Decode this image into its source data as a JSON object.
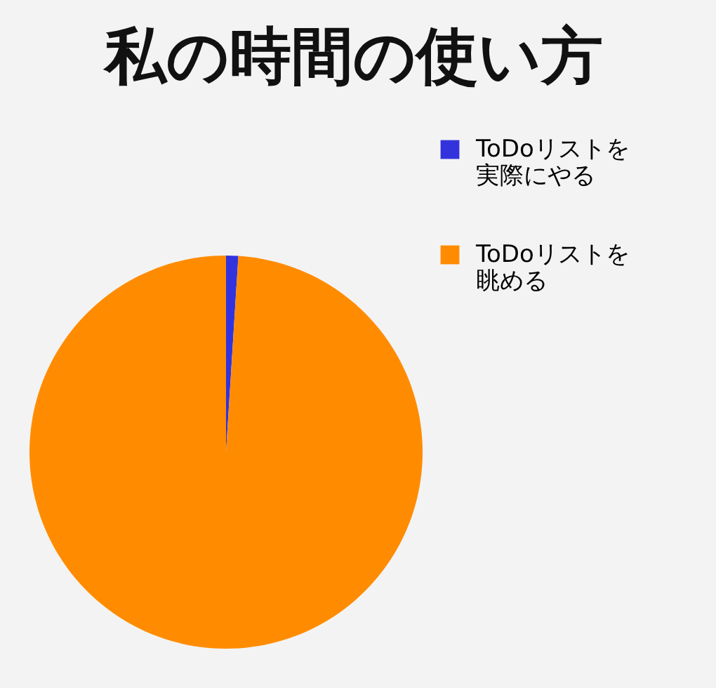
{
  "chart_data": {
    "type": "pie",
    "title": "私の時間の使い方",
    "categories": [
      "ToDoリストを実際にやる",
      "ToDoリストを眺める"
    ],
    "values": [
      1,
      99
    ],
    "colors": [
      "#3333dd",
      "#ff8c00"
    ],
    "legend": "top right"
  }
}
